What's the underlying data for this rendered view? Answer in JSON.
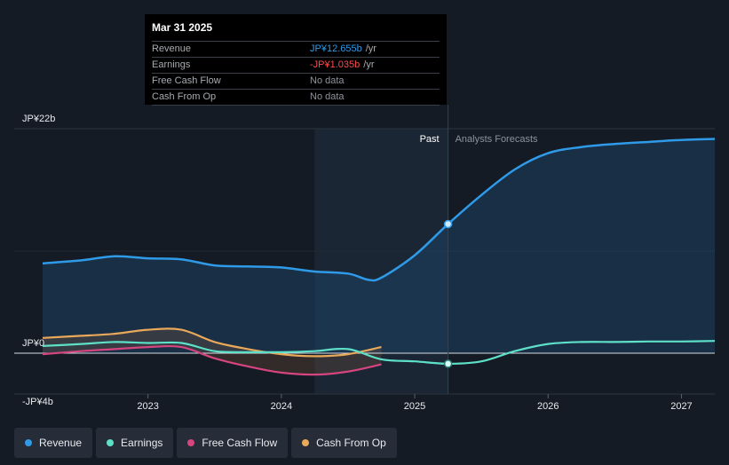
{
  "tooltip": {
    "date": "Mar 31 2025",
    "rows": [
      {
        "label": "Revenue",
        "value": "JP¥12.655b",
        "unit": "/yr"
      },
      {
        "label": "Earnings",
        "value": "-JP¥1.035b",
        "unit": "/yr"
      },
      {
        "label": "Free Cash Flow",
        "value": "No data",
        "unit": ""
      },
      {
        "label": "Cash From Op",
        "value": "No data",
        "unit": ""
      }
    ]
  },
  "colors": {
    "revenue": "#2f9be8",
    "earnings": "#5ee0c8",
    "free_cash_flow": "#d6457f",
    "cash_from_op": "#e9a95a"
  },
  "chart_data": {
    "type": "line",
    "units": "JP¥ billions",
    "ylim": [
      -4,
      22
    ],
    "y_tick_labels": [
      "JP¥22b",
      "JP¥0",
      "-JP¥4b"
    ],
    "y_ticks": [
      22,
      0,
      -4
    ],
    "x_tick_labels": [
      "2023",
      "2024",
      "2025",
      "2026",
      "2027"
    ],
    "x_ticks": [
      2023,
      2024,
      2025,
      2026,
      2027
    ],
    "xlim": [
      2022.21,
      2027.25
    ],
    "past_label": "Past",
    "forecast_label": "Analysts Forecasts",
    "past_region_start": 2024.25,
    "forecast_start": 2025.25,
    "highlight_date": 2025.25,
    "series": [
      {
        "name": "Revenue",
        "key": "revenue",
        "x": [
          2022.21,
          2022.5,
          2022.75,
          2023.0,
          2023.25,
          2023.5,
          2023.75,
          2024.0,
          2024.25,
          2024.5,
          2024.65,
          2024.75,
          2025.0,
          2025.25,
          2025.5,
          2025.75,
          2026.0,
          2026.25,
          2026.5,
          2026.75,
          2027.0,
          2027.25
        ],
        "values": [
          8.8,
          9.1,
          9.5,
          9.3,
          9.2,
          8.6,
          8.5,
          8.4,
          8.0,
          7.8,
          7.2,
          7.4,
          9.6,
          12.655,
          15.5,
          18.0,
          19.6,
          20.2,
          20.5,
          20.7,
          20.9,
          21.0
        ]
      },
      {
        "name": "Earnings",
        "key": "earnings",
        "x": [
          2022.21,
          2022.5,
          2022.75,
          2023.0,
          2023.25,
          2023.5,
          2023.75,
          2024.0,
          2024.25,
          2024.5,
          2024.75,
          2025.0,
          2025.25,
          2025.5,
          2025.75,
          2026.0,
          2026.25,
          2026.5,
          2026.75,
          2027.0,
          2027.25
        ],
        "values": [
          0.7,
          0.9,
          1.1,
          1.0,
          1.0,
          0.2,
          0.1,
          0.1,
          0.2,
          0.4,
          -0.6,
          -0.8,
          -1.035,
          -0.8,
          0.2,
          0.9,
          1.1,
          1.1,
          1.15,
          1.15,
          1.2
        ]
      },
      {
        "name": "Free Cash Flow",
        "key": "free_cash_flow",
        "x": [
          2022.21,
          2022.5,
          2022.75,
          2023.0,
          2023.25,
          2023.5,
          2023.75,
          2024.0,
          2024.25,
          2024.5,
          2024.75
        ],
        "values": [
          -0.1,
          0.2,
          0.4,
          0.6,
          0.6,
          -0.5,
          -1.3,
          -1.9,
          -2.1,
          -1.8,
          -1.1
        ]
      },
      {
        "name": "Cash From Op",
        "key": "cash_from_op",
        "x": [
          2022.21,
          2022.5,
          2022.75,
          2023.0,
          2023.25,
          2023.5,
          2023.75,
          2024.0,
          2024.25,
          2024.5,
          2024.75
        ],
        "values": [
          1.5,
          1.7,
          1.9,
          2.3,
          2.3,
          1.1,
          0.4,
          -0.1,
          -0.3,
          -0.1,
          0.6
        ]
      }
    ]
  },
  "legend": {
    "items": [
      {
        "label": "Revenue",
        "key": "revenue"
      },
      {
        "label": "Earnings",
        "key": "earnings"
      },
      {
        "label": "Free Cash Flow",
        "key": "free_cash_flow"
      },
      {
        "label": "Cash From Op",
        "key": "cash_from_op"
      }
    ]
  }
}
